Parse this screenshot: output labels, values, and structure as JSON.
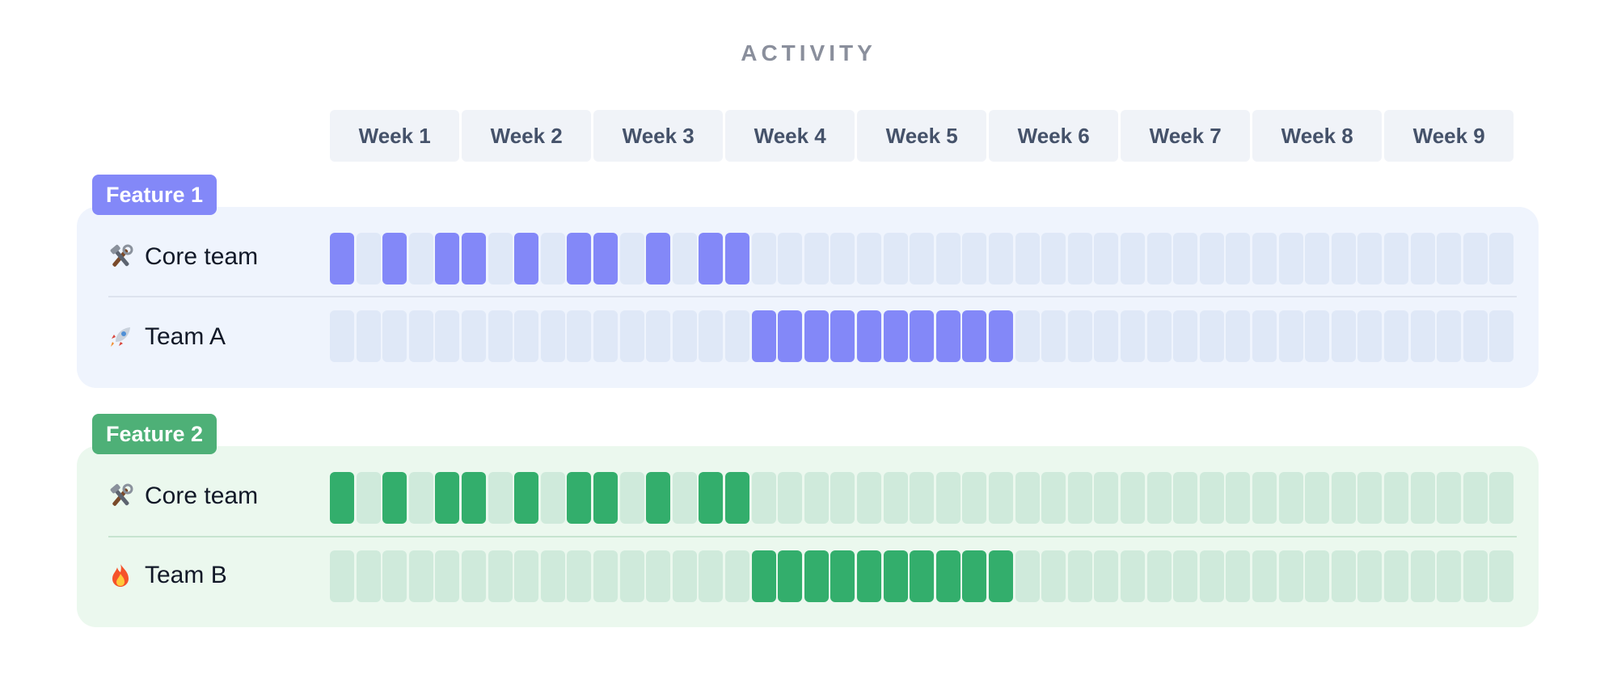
{
  "title": "ACTIVITY",
  "colors": {
    "blue_active": "#8388f8",
    "blue_inactive": "#dfe8f7",
    "blue_panel": "#eff4fd",
    "blue_badge": "#8388f8",
    "green_active": "#33ae6c",
    "green_inactive": "#cfeadb",
    "green_panel": "#ebf8ee",
    "green_badge": "#4eb077",
    "week_bg": "#f0f3f8",
    "week_text": "#45526a",
    "title_text": "#8a8f9c"
  },
  "chart_data": {
    "type": "heatmap",
    "title": "ACTIVITY",
    "columns": [
      "Week 1",
      "Week 2",
      "Week 3",
      "Week 4",
      "Week 5",
      "Week 6",
      "Week 7",
      "Week 8",
      "Week 9"
    ],
    "cells_per_week": 5,
    "groups": [
      {
        "label": "Feature 1",
        "color": "blue",
        "rows": [
          {
            "label": "Core team",
            "icon": "tools-icon",
            "active": [
              1,
              0,
              1,
              0,
              1,
              1,
              0,
              1,
              0,
              1,
              1,
              0,
              1,
              0,
              1,
              1,
              0,
              0,
              0,
              0,
              0,
              0,
              0,
              0,
              0,
              0,
              0,
              0,
              0,
              0,
              0,
              0,
              0,
              0,
              0,
              0,
              0,
              0,
              0,
              0,
              0,
              0,
              0,
              0,
              0
            ]
          },
          {
            "label": "Team A",
            "icon": "rocket-icon",
            "active": [
              0,
              0,
              0,
              0,
              0,
              0,
              0,
              0,
              0,
              0,
              0,
              0,
              0,
              0,
              0,
              0,
              1,
              1,
              1,
              1,
              1,
              1,
              1,
              1,
              1,
              1,
              0,
              0,
              0,
              0,
              0,
              0,
              0,
              0,
              0,
              0,
              0,
              0,
              0,
              0,
              0,
              0,
              0,
              0,
              0
            ]
          }
        ]
      },
      {
        "label": "Feature 2",
        "color": "green",
        "rows": [
          {
            "label": "Core team",
            "icon": "tools-icon",
            "active": [
              1,
              0,
              1,
              0,
              1,
              1,
              0,
              1,
              0,
              1,
              1,
              0,
              1,
              0,
              1,
              1,
              0,
              0,
              0,
              0,
              0,
              0,
              0,
              0,
              0,
              0,
              0,
              0,
              0,
              0,
              0,
              0,
              0,
              0,
              0,
              0,
              0,
              0,
              0,
              0,
              0,
              0,
              0,
              0,
              0
            ]
          },
          {
            "label": "Team B",
            "icon": "fire-icon",
            "active": [
              0,
              0,
              0,
              0,
              0,
              0,
              0,
              0,
              0,
              0,
              0,
              0,
              0,
              0,
              0,
              0,
              1,
              1,
              1,
              1,
              1,
              1,
              1,
              1,
              1,
              1,
              0,
              0,
              0,
              0,
              0,
              0,
              0,
              0,
              0,
              0,
              0,
              0,
              0,
              0,
              0,
              0,
              0,
              0,
              0
            ]
          }
        ]
      }
    ]
  }
}
